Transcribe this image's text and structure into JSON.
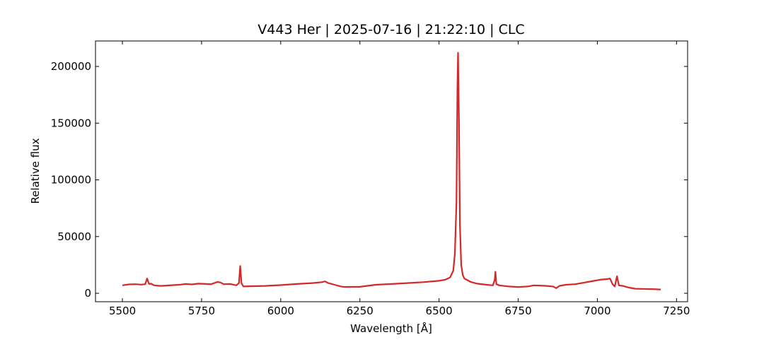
{
  "chart_data": {
    "type": "line",
    "title": "V443 Her | 2025-07-16 | 21:22:10 | CLC",
    "x_label": "Wavelength [Å]",
    "y_label": "Relative flux",
    "color": "#d62728",
    "x": [
      5500,
      5520,
      5540,
      5560,
      5572,
      5578,
      5584,
      5590,
      5600,
      5620,
      5640,
      5660,
      5680,
      5700,
      5720,
      5740,
      5760,
      5780,
      5800,
      5810,
      5820,
      5840,
      5860,
      5868,
      5872,
      5876,
      5882,
      5900,
      5950,
      6000,
      6050,
      6100,
      6130,
      6140,
      6150,
      6170,
      6190,
      6200,
      6250,
      6300,
      6350,
      6400,
      6450,
      6500,
      6520,
      6535,
      6545,
      6550,
      6555,
      6558,
      6560,
      6563,
      6566,
      6570,
      6575,
      6580,
      6600,
      6620,
      6650,
      6670,
      6676,
      6678,
      6681,
      6690,
      6720,
      6750,
      6780,
      6800,
      6840,
      6860,
      6870,
      6880,
      6900,
      6930,
      6960,
      6990,
      7010,
      7030,
      7040,
      7048,
      7055,
      7062,
      7068,
      7080,
      7100,
      7120,
      7150,
      7180,
      7200
    ],
    "values": [
      7000,
      7800,
      8000,
      7600,
      8000,
      13000,
      8200,
      8500,
      7000,
      6500,
      6800,
      7200,
      7500,
      8200,
      7800,
      8500,
      8300,
      8000,
      10000,
      9500,
      8000,
      8200,
      7000,
      9000,
      24000,
      9000,
      6000,
      6200,
      6500,
      7200,
      8200,
      9000,
      9800,
      10500,
      9000,
      7500,
      6000,
      5600,
      5700,
      7500,
      8200,
      9000,
      9800,
      11000,
      12000,
      14000,
      20000,
      35000,
      80000,
      180000,
      212000,
      150000,
      60000,
      25000,
      16000,
      13000,
      10000,
      8500,
      7500,
      7000,
      12000,
      19000,
      8000,
      7000,
      6000,
      5500,
      6000,
      7000,
      6500,
      6000,
      4500,
      6500,
      7500,
      8000,
      9500,
      11000,
      12000,
      12500,
      13000,
      8000,
      6000,
      15000,
      7000,
      6500,
      5000,
      4000,
      3800,
      3600,
      3300
    ],
    "xlim": [
      5415,
      7285
    ],
    "xticks": [
      5500,
      5750,
      6000,
      6250,
      6500,
      6750,
      7000,
      7250
    ],
    "ylim": [
      -7450,
      222450
    ],
    "yticks": [
      0,
      50000,
      100000,
      150000,
      200000
    ]
  }
}
